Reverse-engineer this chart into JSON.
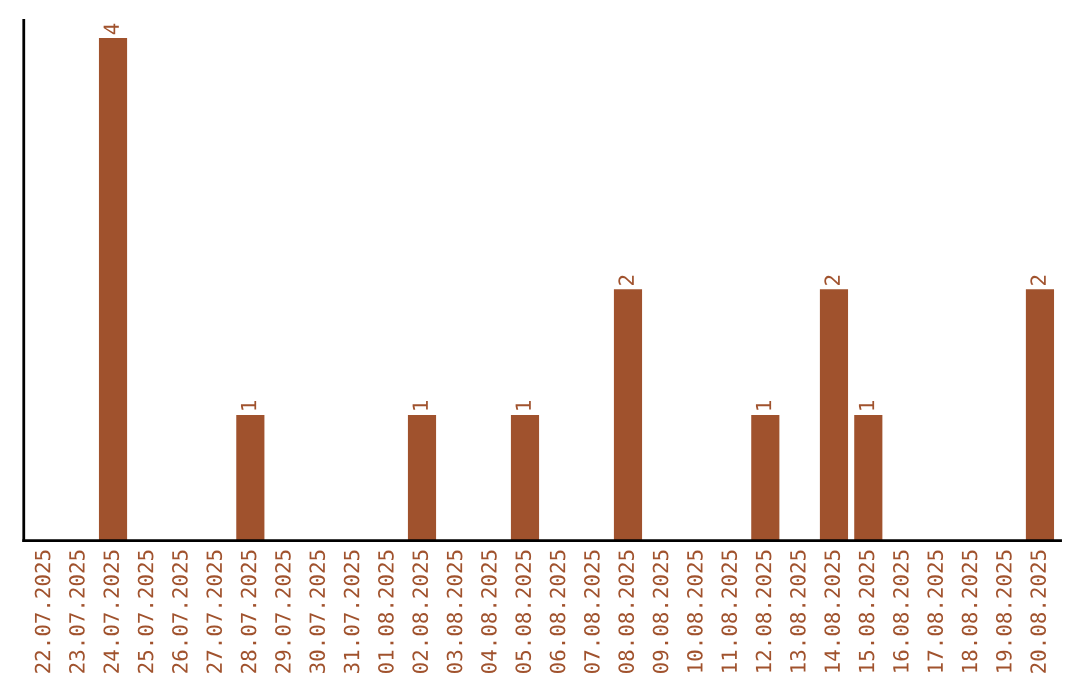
{
  "chart_data": {
    "type": "bar",
    "categories": [
      "22.07.2025",
      "23.07.2025",
      "24.07.2025",
      "25.07.2025",
      "26.07.2025",
      "27.07.2025",
      "28.07.2025",
      "29.07.2025",
      "30.07.2025",
      "31.07.2025",
      "01.08.2025",
      "02.08.2025",
      "03.08.2025",
      "04.08.2025",
      "05.08.2025",
      "06.08.2025",
      "07.08.2025",
      "08.08.2025",
      "09.08.2025",
      "10.08.2025",
      "11.08.2025",
      "12.08.2025",
      "13.08.2025",
      "14.08.2025",
      "15.08.2025",
      "16.08.2025",
      "17.08.2025",
      "18.08.2025",
      "19.08.2025",
      "20.08.2025"
    ],
    "values": [
      0,
      0,
      4,
      0,
      0,
      0,
      1,
      0,
      0,
      0,
      0,
      1,
      0,
      0,
      1,
      0,
      0,
      2,
      0,
      0,
      0,
      1,
      0,
      2,
      1,
      0,
      0,
      0,
      0,
      2
    ],
    "value_labels": [
      null,
      null,
      "4",
      null,
      null,
      null,
      "1",
      null,
      null,
      null,
      null,
      "1",
      null,
      null,
      "1",
      null,
      null,
      "2",
      null,
      null,
      null,
      "1",
      null,
      "2",
      "1",
      null,
      null,
      null,
      null,
      "2"
    ],
    "color": "#a0522d",
    "grid": false,
    "legend": false,
    "tick_labels": "x"
  }
}
